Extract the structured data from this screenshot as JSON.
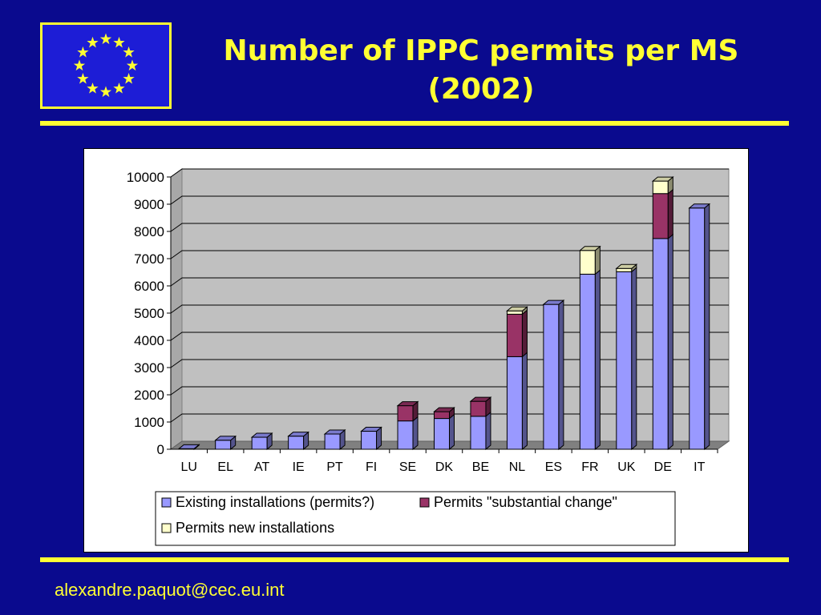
{
  "slide": {
    "title_line1": "Number of IPPC permits per MS",
    "title_line2": "(2002)",
    "footer_email": "alexandre.paquot@cec.eu.int",
    "flag_icon": "eu-flag-icon",
    "colors": {
      "background": "#0a0a8e",
      "accent": "#ffff33"
    }
  },
  "chart_data": {
    "type": "bar",
    "stacked": true,
    "three_d": true,
    "title": "",
    "xlabel": "",
    "ylabel": "",
    "ylim": [
      0,
      10000
    ],
    "yticks": [
      0,
      1000,
      2000,
      3000,
      4000,
      5000,
      6000,
      7000,
      8000,
      9000,
      10000
    ],
    "grid": true,
    "legend_position": "bottom",
    "categories": [
      "LU",
      "EL",
      "AT",
      "IE",
      "PT",
      "FI",
      "SE",
      "DK",
      "BE",
      "NL",
      "ES",
      "FR",
      "UK",
      "DE",
      "IT"
    ],
    "series": [
      {
        "name": "Existing installations (permits?)",
        "color": "#9999ff",
        "values": [
          20,
          330,
          440,
          480,
          560,
          660,
          1040,
          1130,
          1210,
          3400,
          5320,
          6430,
          6520,
          7740,
          8860
        ]
      },
      {
        "name": "Permits \"substantial change\"",
        "color": "#993366",
        "values": [
          0,
          0,
          0,
          0,
          0,
          0,
          560,
          250,
          550,
          1560,
          0,
          0,
          0,
          1650,
          0
        ]
      },
      {
        "name": "Permits new installations",
        "color": "#ffffcc",
        "values": [
          0,
          0,
          0,
          0,
          0,
          0,
          0,
          0,
          0,
          120,
          0,
          870,
          120,
          460,
          0
        ]
      }
    ]
  }
}
